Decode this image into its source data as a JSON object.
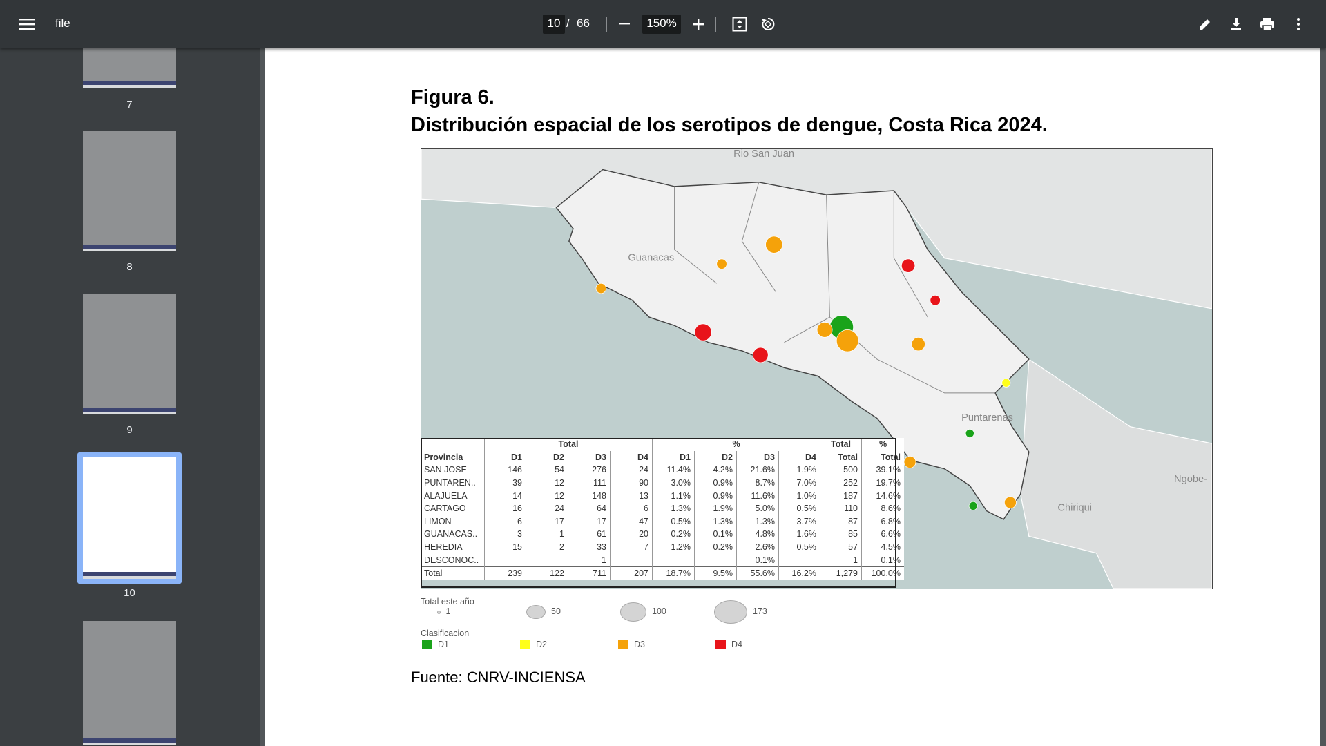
{
  "toolbar": {
    "title": "file",
    "page": "10",
    "page_count": "66",
    "zoom": "150%"
  },
  "thumbnails": [
    "7",
    "8",
    "9",
    "10"
  ],
  "document": {
    "heading": "Figura 6.",
    "subheading": "Distribución espacial de los serotipos de dengue, Costa Rica 2024.",
    "map_labels": [
      "Rio San Juan",
      "Guanacas",
      "Puntarenas",
      "Ngobe-",
      "Chiriqui"
    ],
    "table": {
      "group_headers": [
        "Total",
        "%",
        "Total",
        "%"
      ],
      "headers": [
        "Provincia",
        "D1",
        "D2",
        "D3",
        "D4",
        "D1",
        "D2",
        "D3",
        "D4",
        "Total",
        "Total"
      ],
      "rows": [
        [
          "SAN JOSE",
          "146",
          "54",
          "276",
          "24",
          "11.4%",
          "4.2%",
          "21.6%",
          "1.9%",
          "500",
          "39.1%"
        ],
        [
          "PUNTAREN..",
          "39",
          "12",
          "111",
          "90",
          "3.0%",
          "0.9%",
          "8.7%",
          "7.0%",
          "252",
          "19.7%"
        ],
        [
          "ALAJUELA",
          "14",
          "12",
          "148",
          "13",
          "1.1%",
          "0.9%",
          "11.6%",
          "1.0%",
          "187",
          "14.6%"
        ],
        [
          "CARTAGO",
          "16",
          "24",
          "64",
          "6",
          "1.3%",
          "1.9%",
          "5.0%",
          "0.5%",
          "110",
          "8.6%"
        ],
        [
          "LIMON",
          "6",
          "17",
          "17",
          "47",
          "0.5%",
          "1.3%",
          "1.3%",
          "3.7%",
          "87",
          "6.8%"
        ],
        [
          "GUANACAS..",
          "3",
          "1",
          "61",
          "20",
          "0.2%",
          "0.1%",
          "4.8%",
          "1.6%",
          "85",
          "6.6%"
        ],
        [
          "HEREDIA",
          "15",
          "2",
          "33",
          "7",
          "1.2%",
          "0.2%",
          "2.6%",
          "0.5%",
          "57",
          "4.5%"
        ],
        [
          "DESCONOC..",
          null,
          null,
          "1",
          null,
          null,
          null,
          "0.1%",
          null,
          "1",
          "0.1%"
        ],
        [
          "Total",
          "239",
          "122",
          "711",
          "207",
          "18.7%",
          "9.5%",
          "55.6%",
          "16.2%",
          "1,279",
          "100.0%"
        ]
      ]
    },
    "legend": {
      "size_title": "Total este año",
      "sizes": [
        "1",
        "50",
        "100",
        "173"
      ],
      "class_title": "Clasificacion",
      "classes": [
        {
          "label": "D1",
          "color": "#1aa31a"
        },
        {
          "label": "D2",
          "color": "#ffff1a"
        },
        {
          "label": "D3",
          "color": "#f5a20a"
        },
        {
          "label": "D4",
          "color": "#e8141a"
        }
      ]
    },
    "source": "Fuente: CNRV-INCIENSA"
  }
}
